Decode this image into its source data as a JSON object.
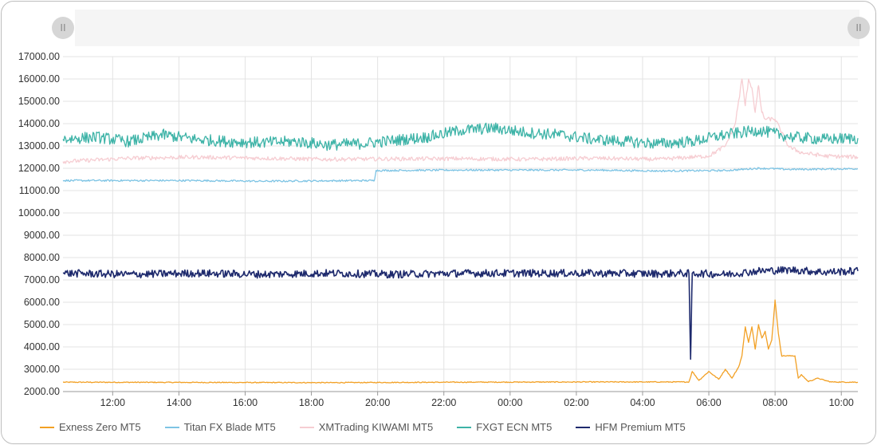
{
  "slider": {
    "left_handle_label": "II",
    "right_handle_label": "II"
  },
  "chart_data": {
    "type": "line",
    "title": "",
    "xlabel": "",
    "ylabel": "",
    "ylim": [
      2000,
      17000
    ],
    "y_ticks": [
      "17000.00",
      "16000.00",
      "15000.00",
      "14000.00",
      "13000.00",
      "12000.00",
      "11000.00",
      "10000.00",
      "9000.00",
      "8000.00",
      "7000.00",
      "6000.00",
      "5000.00",
      "4000.00",
      "3000.00",
      "2000.00"
    ],
    "x_ticks": [
      "12:00",
      "14:00",
      "16:00",
      "18:00",
      "20:00",
      "22:00",
      "00:00",
      "02:00",
      "04:00",
      "06:00",
      "08:00",
      "10:00"
    ],
    "x_tick_hours": [
      1.5,
      3.5,
      5.5,
      7.5,
      9.5,
      11.5,
      13.5,
      15.5,
      17.5,
      19.5,
      21.5,
      23.5
    ],
    "x_range_hours": [
      0,
      24
    ],
    "grid": true,
    "legend_position": "bottom",
    "series": [
      {
        "name": "Exness Zero MT5",
        "color": "#f2a024",
        "points": [
          [
            0,
            2420
          ],
          [
            4,
            2410
          ],
          [
            8,
            2400
          ],
          [
            12,
            2420
          ],
          [
            16,
            2430
          ],
          [
            18.9,
            2430
          ],
          [
            19.0,
            2900
          ],
          [
            19.2,
            2500
          ],
          [
            19.5,
            2900
          ],
          [
            19.8,
            2550
          ],
          [
            20.0,
            3000
          ],
          [
            20.2,
            2600
          ],
          [
            20.4,
            3100
          ],
          [
            20.5,
            3600
          ],
          [
            20.6,
            4900
          ],
          [
            20.7,
            4200
          ],
          [
            20.8,
            4900
          ],
          [
            20.9,
            3900
          ],
          [
            21.0,
            5000
          ],
          [
            21.1,
            4400
          ],
          [
            21.2,
            4700
          ],
          [
            21.3,
            3900
          ],
          [
            21.4,
            4300
          ],
          [
            21.5,
            6100
          ],
          [
            21.6,
            4600
          ],
          [
            21.7,
            3600
          ],
          [
            22.0,
            3600
          ],
          [
            22.1,
            3600
          ],
          [
            22.2,
            2600
          ],
          [
            22.3,
            2750
          ],
          [
            22.5,
            2450
          ],
          [
            22.8,
            2600
          ],
          [
            23.0,
            2500
          ],
          [
            23.2,
            2430
          ],
          [
            24,
            2420
          ]
        ]
      },
      {
        "name": "Titan FX Blade MT5",
        "color": "#7ec4e4",
        "points": [
          [
            0,
            11450
          ],
          [
            2,
            11450
          ],
          [
            4,
            11450
          ],
          [
            6,
            11420
          ],
          [
            8,
            11440
          ],
          [
            9.4,
            11450
          ],
          [
            9.45,
            11900
          ],
          [
            12,
            11920
          ],
          [
            16,
            11920
          ],
          [
            18,
            11880
          ],
          [
            20,
            11900
          ],
          [
            20.5,
            11950
          ],
          [
            21,
            12000
          ],
          [
            22,
            11950
          ],
          [
            24,
            11980
          ]
        ]
      },
      {
        "name": "XMTrading KIWAMI MT5",
        "color": "#f6cdd2",
        "points": [
          [
            0,
            12300
          ],
          [
            2,
            12450
          ],
          [
            4,
            12500
          ],
          [
            6,
            12450
          ],
          [
            8,
            12400
          ],
          [
            10,
            12420
          ],
          [
            12,
            12430
          ],
          [
            14,
            12400
          ],
          [
            16,
            12450
          ],
          [
            18,
            12400
          ],
          [
            19.5,
            12550
          ],
          [
            20.0,
            13000
          ],
          [
            20.3,
            14000
          ],
          [
            20.5,
            16000
          ],
          [
            20.6,
            14800
          ],
          [
            20.7,
            16000
          ],
          [
            20.8,
            15600
          ],
          [
            20.9,
            14500
          ],
          [
            21.0,
            15700
          ],
          [
            21.1,
            14500
          ],
          [
            21.2,
            14200
          ],
          [
            21.5,
            14200
          ],
          [
            21.7,
            13600
          ],
          [
            21.9,
            13000
          ],
          [
            22.0,
            12900
          ],
          [
            22.3,
            12700
          ],
          [
            23,
            12550
          ],
          [
            24,
            12500
          ]
        ]
      },
      {
        "name": "FXGT ECN MT5",
        "color": "#3db3a7",
        "points": [
          [
            0,
            13300
          ],
          [
            1,
            13400
          ],
          [
            2,
            13200
          ],
          [
            3,
            13500
          ],
          [
            4,
            13300
          ],
          [
            5,
            13200
          ],
          [
            6,
            13150
          ],
          [
            7,
            13200
          ],
          [
            8,
            13050
          ],
          [
            9,
            13100
          ],
          [
            10,
            13250
          ],
          [
            11,
            13400
          ],
          [
            12,
            13700
          ],
          [
            13,
            13800
          ],
          [
            14,
            13600
          ],
          [
            15,
            13500
          ],
          [
            16,
            13300
          ],
          [
            17,
            13200
          ],
          [
            18,
            13100
          ],
          [
            19,
            13200
          ],
          [
            20,
            13500
          ],
          [
            21,
            13700
          ],
          [
            22,
            13400
          ],
          [
            23,
            13300
          ],
          [
            24,
            13350
          ]
        ]
      },
      {
        "name": "HFM Premium MT5",
        "color": "#1e2a6d",
        "points": [
          [
            0,
            7300
          ],
          [
            2,
            7250
          ],
          [
            4,
            7300
          ],
          [
            6,
            7250
          ],
          [
            8,
            7300
          ],
          [
            10,
            7250
          ],
          [
            12,
            7300
          ],
          [
            14,
            7300
          ],
          [
            16,
            7300
          ],
          [
            18,
            7280
          ],
          [
            18.9,
            7300
          ],
          [
            18.95,
            3450
          ],
          [
            19.0,
            7300
          ],
          [
            20,
            7250
          ],
          [
            21,
            7400
          ],
          [
            22,
            7450
          ],
          [
            23,
            7350
          ],
          [
            24,
            7400
          ]
        ]
      }
    ]
  }
}
